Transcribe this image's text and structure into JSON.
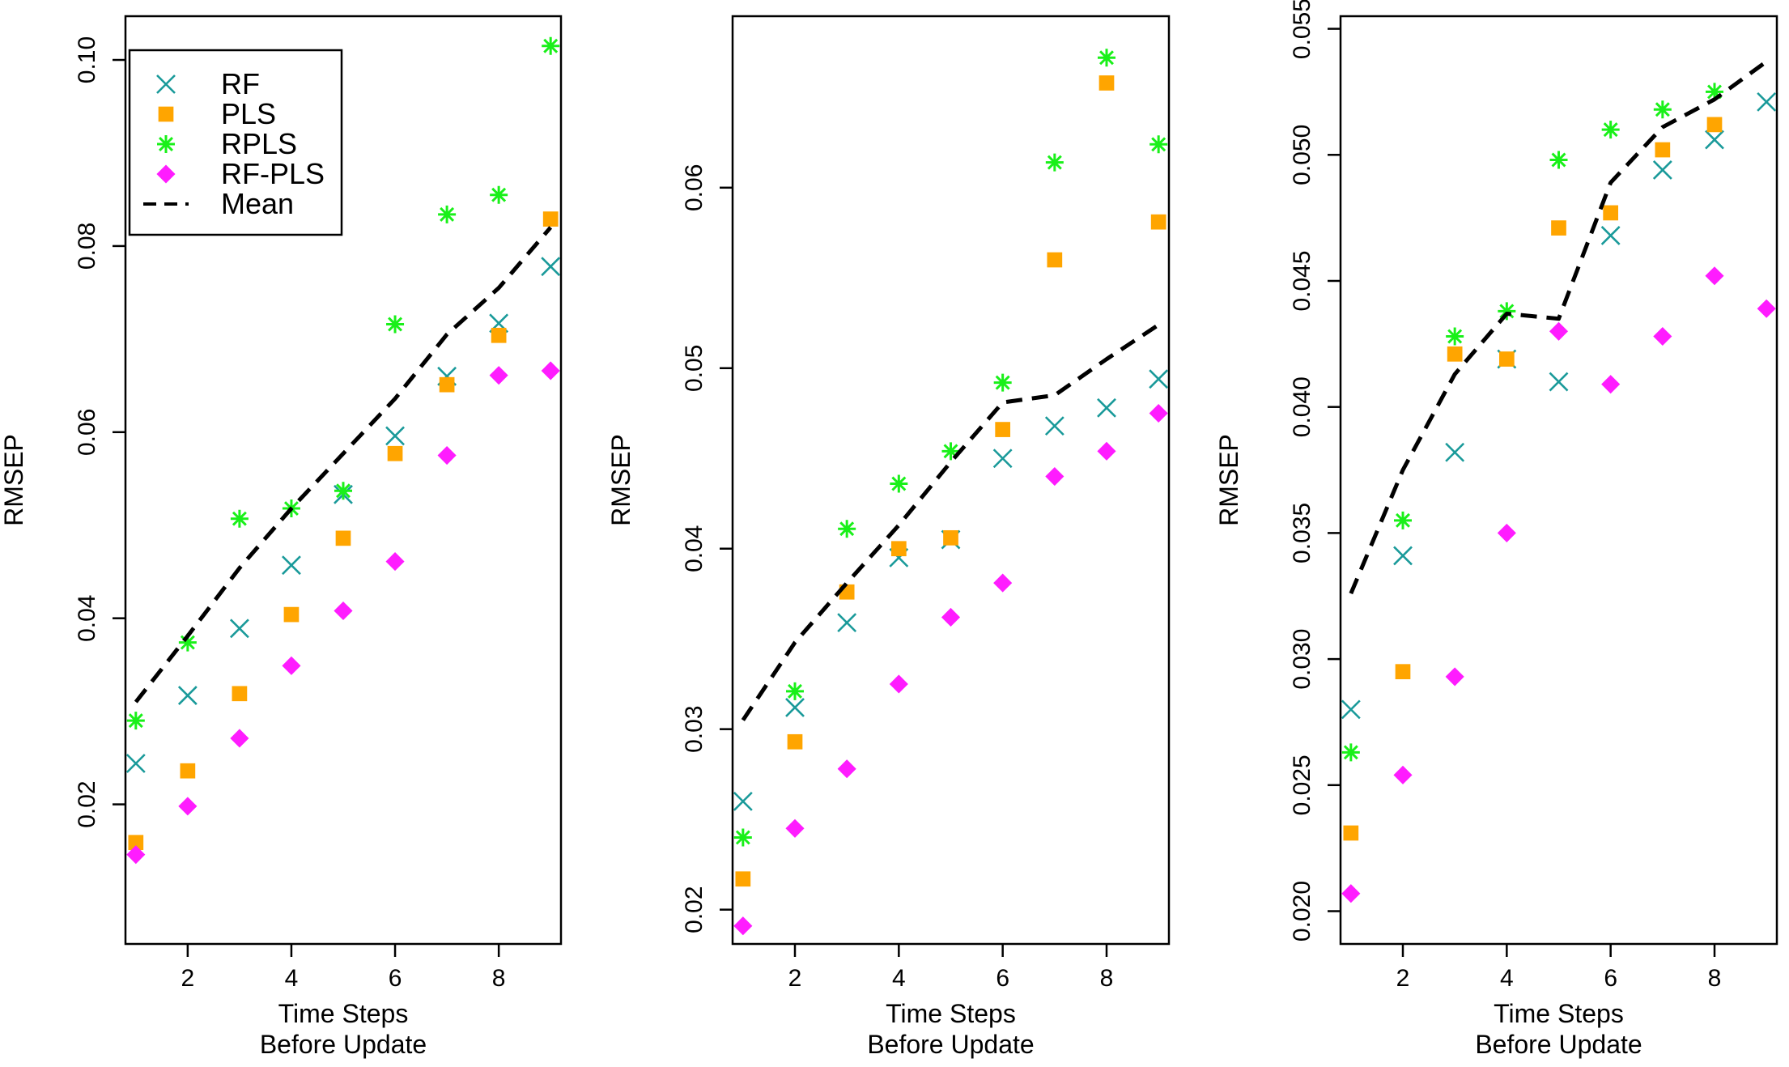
{
  "colors": {
    "RF": "#1a9a9a",
    "PLS": "#ffa500",
    "RPLS": "#19f019",
    "RF-PLS": "#ff1cff",
    "Mean": "#000000"
  },
  "legend": {
    "placement": "top-left of first panel",
    "entries": [
      {
        "label": "RF",
        "marker": "x-cross",
        "color": "#1a9a9a"
      },
      {
        "label": "PLS",
        "marker": "square",
        "color": "#ffa500"
      },
      {
        "label": "RPLS",
        "marker": "asterisk",
        "color": "#19f019"
      },
      {
        "label": "RF-PLS",
        "marker": "diamond",
        "color": "#ff1cff"
      },
      {
        "label": "Mean",
        "marker": "dashed-line",
        "color": "#000000"
      }
    ]
  },
  "chart_data": [
    {
      "type": "scatter",
      "title": "",
      "xlabel": "Time Steps\nBefore Update",
      "ylabel": "RMSEP",
      "xlim": [
        0.8,
        9.2
      ],
      "ylim": [
        0.005,
        0.1047
      ],
      "xticks": [
        2,
        4,
        6,
        8
      ],
      "yticks": [
        0.02,
        0.04,
        0.06,
        0.08,
        0.1
      ],
      "ytick_labels": [
        "0.02",
        "0.04",
        "0.06",
        "0.08",
        "0.10"
      ],
      "grid": false,
      "x": [
        1,
        2,
        3,
        4,
        5,
        6,
        7,
        8,
        9
      ],
      "series": [
        {
          "name": "RF",
          "values": [
            0.0244,
            0.0317,
            0.0389,
            0.0457,
            0.0533,
            0.0596,
            0.066,
            0.0717,
            0.0778
          ]
        },
        {
          "name": "PLS",
          "values": [
            0.0159,
            0.0236,
            0.0319,
            0.0404,
            0.0486,
            0.0577,
            0.0651,
            0.0704,
            0.0829
          ]
        },
        {
          "name": "RPLS",
          "values": [
            0.029,
            0.0374,
            0.0507,
            0.0518,
            0.0537,
            0.0716,
            0.0834,
            0.0855,
            0.1015
          ]
        },
        {
          "name": "RF-PLS",
          "values": [
            0.0146,
            0.0198,
            0.0271,
            0.0349,
            0.0408,
            0.0461,
            0.0575,
            0.0661,
            0.0666
          ]
        },
        {
          "name": "Mean",
          "line": "dashed",
          "values": [
            0.031,
            0.0381,
            0.0454,
            0.0518,
            0.0577,
            0.0636,
            0.0705,
            0.0755,
            0.082
          ]
        }
      ]
    },
    {
      "type": "scatter",
      "title": "",
      "xlabel": "Time Steps\nBefore Update",
      "ylabel": "RMSEP",
      "xlim": [
        0.8,
        9.2
      ],
      "ylim": [
        0.0181,
        0.0695
      ],
      "xticks": [
        2,
        4,
        6,
        8
      ],
      "yticks": [
        0.02,
        0.03,
        0.04,
        0.05,
        0.06
      ],
      "ytick_labels": [
        "0.02",
        "0.03",
        "0.04",
        "0.05",
        "0.06"
      ],
      "grid": false,
      "x": [
        1,
        2,
        3,
        4,
        5,
        6,
        7,
        8,
        9
      ],
      "series": [
        {
          "name": "RF",
          "values": [
            0.026,
            0.0312,
            0.0359,
            0.0395,
            0.0405,
            0.045,
            0.0468,
            0.0478,
            0.0494
          ]
        },
        {
          "name": "PLS",
          "values": [
            0.0217,
            0.0293,
            0.0376,
            0.04,
            0.0406,
            0.0466,
            0.056,
            0.0658,
            0.0581
          ]
        },
        {
          "name": "RPLS",
          "values": [
            0.024,
            0.0321,
            0.0411,
            0.0436,
            0.0454,
            0.0492,
            0.0614,
            0.0672,
            0.0624
          ]
        },
        {
          "name": "RF-PLS",
          "values": [
            0.0191,
            0.0245,
            0.0278,
            0.0325,
            0.0362,
            0.0381,
            0.044,
            0.0454,
            0.0475
          ]
        },
        {
          "name": "Mean",
          "line": "dashed",
          "values": [
            0.0305,
            0.0348,
            0.0381,
            0.0413,
            0.0448,
            0.0481,
            0.0485,
            0.0505,
            0.0524
          ]
        }
      ]
    },
    {
      "type": "scatter",
      "title": "",
      "xlabel": "Time Steps\nBefore Update",
      "ylabel": "RMSEP",
      "xlim": [
        0.8,
        9.2
      ],
      "ylim": [
        0.0187,
        0.0555
      ],
      "xticks": [
        2,
        4,
        6,
        8
      ],
      "yticks": [
        0.02,
        0.025,
        0.03,
        0.035,
        0.04,
        0.045,
        0.05,
        0.055
      ],
      "ytick_labels": [
        "0.020",
        "0.025",
        "0.030",
        "0.035",
        "0.040",
        "0.045",
        "0.050",
        "0.055"
      ],
      "grid": false,
      "x": [
        1,
        2,
        3,
        4,
        5,
        6,
        7,
        8,
        9
      ],
      "series": [
        {
          "name": "RF",
          "values": [
            0.028,
            0.0341,
            0.0382,
            0.0419,
            0.041,
            0.0468,
            0.0494,
            0.0506,
            0.0521
          ]
        },
        {
          "name": "PLS",
          "values": [
            0.0231,
            0.0295,
            0.0421,
            0.0419,
            0.0471,
            0.0477,
            0.0502,
            0.0512,
            null
          ]
        },
        {
          "name": "RPLS",
          "values": [
            0.0263,
            0.0355,
            0.0428,
            0.0438,
            0.0498,
            0.051,
            0.0518,
            0.0525,
            null
          ]
        },
        {
          "name": "RF-PLS",
          "values": [
            0.0207,
            0.0254,
            0.0293,
            0.035,
            0.043,
            0.0409,
            0.0428,
            0.0452,
            0.0439
          ]
        },
        {
          "name": "Mean",
          "line": "dashed",
          "values": [
            0.0326,
            0.0375,
            0.0413,
            0.0437,
            0.0435,
            0.0489,
            0.0511,
            0.0522,
            0.0537
          ]
        }
      ]
    }
  ]
}
